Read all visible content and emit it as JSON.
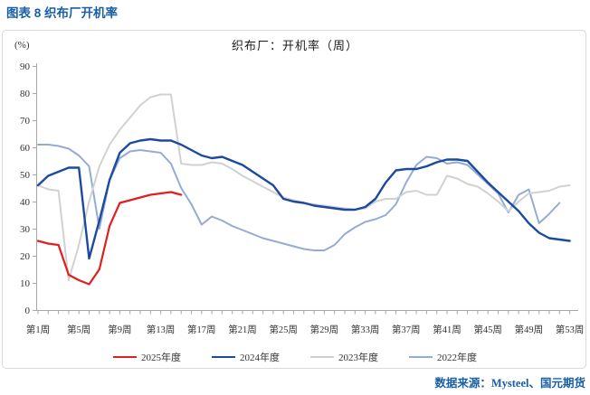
{
  "page_title": "图表 8 织布厂开机率",
  "chart": {
    "title": "织布厂：开机率（周）",
    "y_unit_label": "(%)"
  },
  "source_note": "数据来源：Mysteel、国元期货",
  "colors": {
    "heading_blue": "#1a5fa6",
    "frame_border": "#d9d9d9",
    "axis": "#a6a6a6",
    "tick_label": "#333333"
  },
  "chart_data": {
    "type": "line",
    "title": "织布厂：开机率（周）",
    "xlabel": "",
    "ylabel": "(%)",
    "grid": false,
    "legend_position": "bottom",
    "y_axis": {
      "min": 0,
      "max": 90,
      "step": 10
    },
    "x_axis": {
      "min_week": 1,
      "max_week": 53,
      "tick_weeks": [
        1,
        5,
        9,
        13,
        17,
        21,
        25,
        29,
        33,
        37,
        41,
        45,
        49,
        53
      ],
      "tick_labels": [
        "第1周",
        "第5周",
        "第9周",
        "第13周",
        "第17周",
        "第21周",
        "第25周",
        "第29周",
        "第33周",
        "第37周",
        "第41周",
        "第45周",
        "第49周",
        "第53周"
      ]
    },
    "series": [
      {
        "name": "2025年度",
        "color": "#e01f1f",
        "stroke_width": 2.2,
        "start_week": 1,
        "values": [
          25.5,
          24.5,
          24,
          13,
          11,
          9.5,
          15,
          31,
          39.5,
          40.5,
          41.5,
          42.5,
          43,
          43.5,
          42.5
        ]
      },
      {
        "name": "2024年度",
        "color": "#1b4a9e",
        "stroke_width": 2.4,
        "start_week": 1,
        "values": [
          46,
          49.5,
          51,
          52.5,
          52.5,
          19,
          33,
          48,
          58,
          61.5,
          62.5,
          63,
          62.5,
          62.5,
          61,
          59,
          57,
          56,
          56.5,
          55,
          53.5,
          51,
          48.5,
          46,
          41,
          40,
          39.5,
          38.5,
          38,
          37.5,
          37,
          37,
          38,
          41,
          47,
          51.5,
          52,
          52,
          53,
          54.5,
          55.5,
          55.5,
          55,
          51,
          47,
          43.5,
          40,
          36.5,
          32,
          28.5,
          26.5,
          26,
          25.5
        ]
      },
      {
        "name": "2023年度",
        "color": "#d1d1d1",
        "stroke_width": 2,
        "start_week": 1,
        "values": [
          46,
          44.5,
          44,
          11,
          24,
          40,
          53,
          61,
          66.5,
          71,
          75.5,
          78.5,
          79.5,
          79.5,
          54,
          53.5,
          53.5,
          54.5,
          54,
          52,
          49.5,
          47.5,
          45.5,
          43.5,
          41.5,
          40.5,
          39.5,
          39,
          38.5,
          38,
          37.5,
          37,
          37.5,
          40,
          41,
          41,
          43.5,
          44,
          42.5,
          42.5,
          49.5,
          48.5,
          46.5,
          45.5,
          43,
          40,
          36.5,
          40,
          43,
          43.5,
          44,
          45.5,
          46
        ]
      },
      {
        "name": "2022年度",
        "color": "#93acd3",
        "stroke_width": 2,
        "start_week": 1,
        "values": [
          61,
          61,
          60.5,
          59.5,
          57,
          53,
          30,
          48,
          56,
          58.5,
          59,
          58.5,
          58,
          54,
          45,
          39,
          31.5,
          34.5,
          33,
          31,
          29.5,
          28,
          26.5,
          25.5,
          24.5,
          23.5,
          22.5,
          22,
          22,
          24,
          28,
          30.5,
          32.5,
          33.5,
          35,
          39,
          47,
          53.5,
          56.5,
          56,
          54,
          54.5,
          53.5,
          50,
          46.5,
          43,
          36,
          42.5,
          44.5,
          32,
          35.5,
          39.5
        ]
      }
    ]
  }
}
